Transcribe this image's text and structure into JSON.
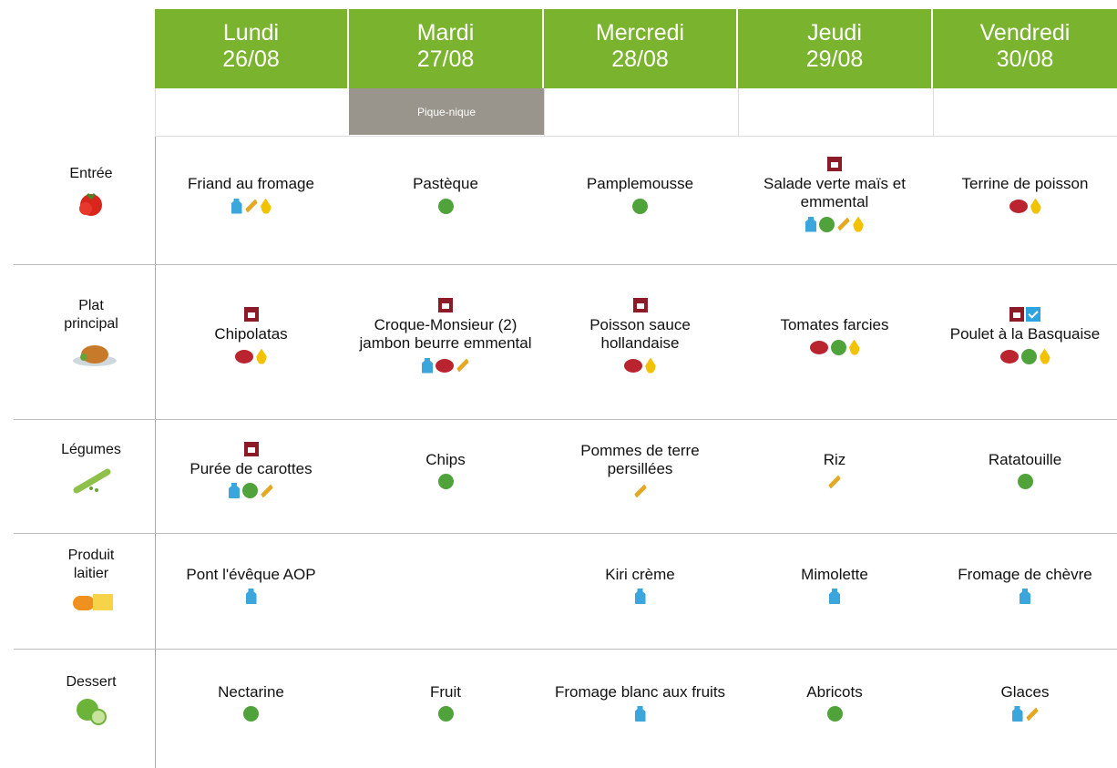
{
  "days": [
    {
      "name": "Lundi",
      "date": "26/08"
    },
    {
      "name": "Mardi",
      "date": "27/08"
    },
    {
      "name": "Mercredi",
      "date": "28/08"
    },
    {
      "name": "Jeudi",
      "date": "29/08"
    },
    {
      "name": "Vendredi",
      "date": "30/08"
    }
  ],
  "banner": {
    "text": "Pique-nique"
  },
  "rows": [
    {
      "label": "Entrée",
      "dishes": [
        "Friand au fromage",
        "Pastèque",
        "Pamplemousse",
        "Salade verte maïs et emmental",
        "Terrine de poisson"
      ]
    },
    {
      "label": "Plat principal",
      "dishes": [
        "Chipolatas",
        "Croque-Monsieur (2) jambon beurre emmental",
        "Poisson sauce hollandaise",
        "Tomates farcies",
        "Poulet à la Basquaise"
      ]
    },
    {
      "label": "Légumes",
      "dishes": [
        "Purée de carottes",
        "Chips",
        "Pommes de terre persillées",
        "Riz",
        "Ratatouille"
      ]
    },
    {
      "label": "Produit laitier",
      "dishes": [
        "Pont l'évêque AOP",
        null,
        "Kiri crème",
        "Mimolette",
        "Fromage de chèvre"
      ]
    },
    {
      "label": "Dessert",
      "dishes": [
        "Nectarine",
        "Fruit",
        "Fromage blanc aux fruits",
        "Abricots",
        "Glaces"
      ]
    }
  ]
}
